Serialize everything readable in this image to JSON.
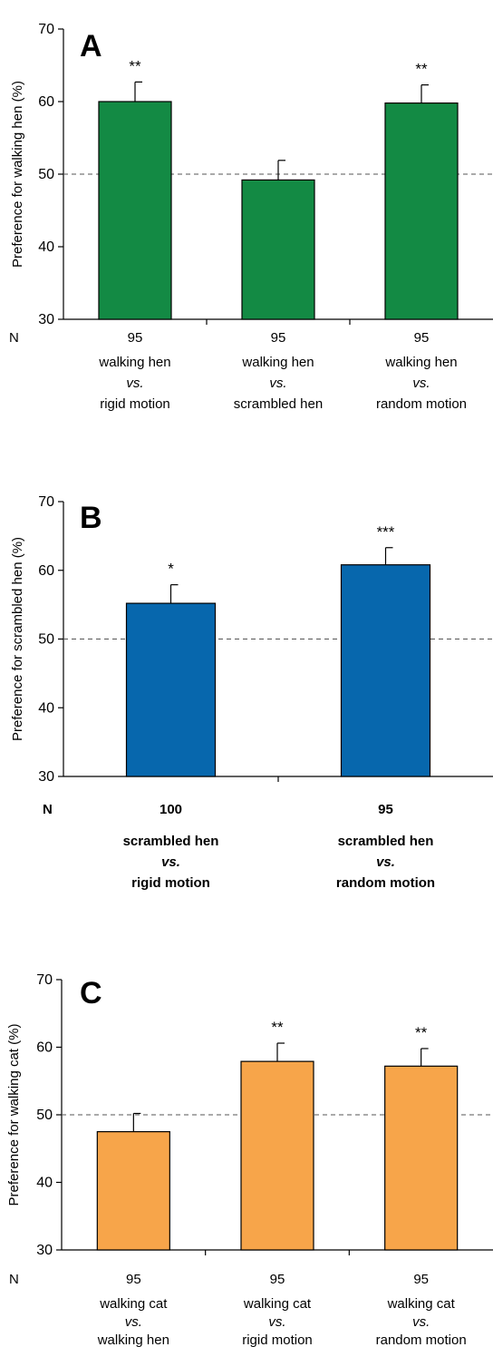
{
  "chart_data": [
    {
      "panel": "A",
      "type": "bar",
      "ylabel": "Preference for walking hen (%)",
      "ylim": [
        30,
        70
      ],
      "yticks": [
        30,
        40,
        50,
        60,
        70
      ],
      "reference_line": 50,
      "n_axis_label": "N",
      "bar_color": "#138a44",
      "categories": [
        {
          "n": "95",
          "line1": "walking hen",
          "line2": "vs.",
          "line3": "rigid motion",
          "value": 60.0,
          "error": 2.7,
          "significance": "**"
        },
        {
          "n": "95",
          "line1": "walking hen",
          "line2": "vs.",
          "line3": "scrambled hen",
          "value": 49.2,
          "error": 2.7,
          "significance": ""
        },
        {
          "n": "95",
          "line1": "walking hen",
          "line2": "vs.",
          "line3": "random motion",
          "value": 59.8,
          "error": 2.5,
          "significance": "**"
        }
      ],
      "bold_categories": false
    },
    {
      "panel": "B",
      "type": "bar",
      "ylabel": "Preference for scrambled  hen (%)",
      "ylim": [
        30,
        70
      ],
      "yticks": [
        30,
        40,
        50,
        60,
        70
      ],
      "reference_line": 50,
      "n_axis_label": "N",
      "bar_color": "#0767ad",
      "categories": [
        {
          "n": "100",
          "line1": "scrambled hen",
          "line2": "vs.",
          "line3": "rigid motion",
          "value": 55.2,
          "error": 2.7,
          "significance": "*"
        },
        {
          "n": "95",
          "line1": "scrambled hen",
          "line2": "vs.",
          "line3": "random motion",
          "value": 60.8,
          "error": 2.5,
          "significance": "***"
        }
      ],
      "bold_categories": true
    },
    {
      "panel": "C",
      "type": "bar",
      "ylabel": "Preference for walking cat (%)",
      "ylim": [
        30,
        70
      ],
      "yticks": [
        30,
        40,
        50,
        60,
        70
      ],
      "reference_line": 50,
      "n_axis_label": "N",
      "bar_color": "#f7a54a",
      "categories": [
        {
          "n": "95",
          "line1": "walking cat",
          "line2": "vs.",
          "line3": "walking hen",
          "value": 47.5,
          "error": 2.7,
          "significance": ""
        },
        {
          "n": "95",
          "line1": "walking cat",
          "line2": "vs.",
          "line3": "rigid motion",
          "value": 57.9,
          "error": 2.7,
          "significance": "**"
        },
        {
          "n": "95",
          "line1": "walking cat",
          "line2": "vs.",
          "line3": "random motion",
          "value": 57.2,
          "error": 2.6,
          "significance": "**"
        }
      ],
      "bold_categories": false
    }
  ]
}
